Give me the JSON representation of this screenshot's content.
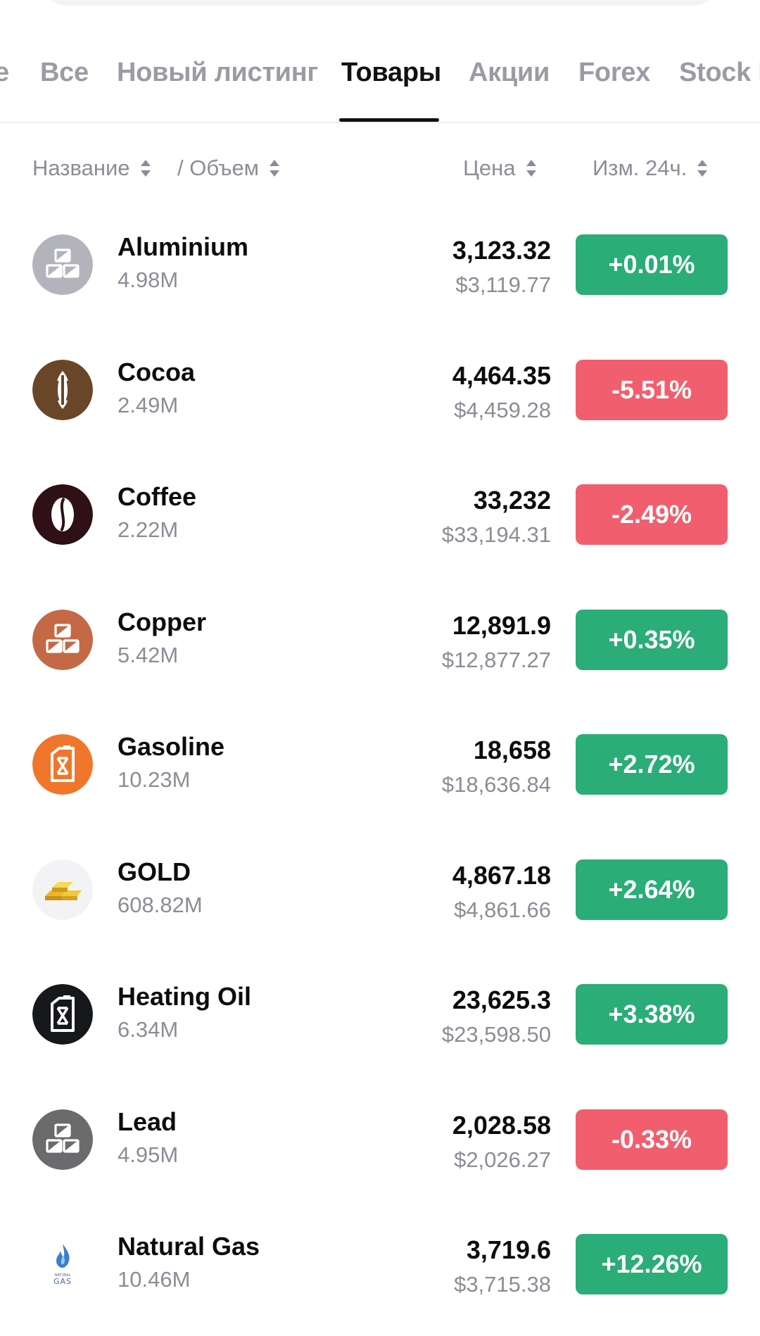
{
  "tabs": [
    {
      "label": "e"
    },
    {
      "label": "Все"
    },
    {
      "label": "Новый листинг"
    },
    {
      "label": "Товары",
      "active": true
    },
    {
      "label": "Акции"
    },
    {
      "label": "Forex"
    },
    {
      "label": "Stock I"
    }
  ],
  "header": {
    "name": "Название",
    "volume": "/ Объем",
    "price": "Цена",
    "change": "Изм. 24ч."
  },
  "colors": {
    "positive": "#2aad76",
    "negative": "#f15f6e"
  },
  "rows": [
    {
      "name": "Aluminium",
      "volume": "4.98M",
      "price": "3,123.32",
      "usd": "$3,119.77",
      "change": "+0.01%",
      "direction": "up",
      "icon": "metal-bars-icon",
      "icon_bg": "#b3b3bc"
    },
    {
      "name": "Cocoa",
      "volume": "2.49M",
      "price": "4,464.35",
      "usd": "$4,459.28",
      "change": "-5.51%",
      "direction": "down",
      "icon": "cocoa-pod-icon",
      "icon_bg": "#6a4628"
    },
    {
      "name": "Coffee",
      "volume": "2.22M",
      "price": "33,232",
      "usd": "$33,194.31",
      "change": "-2.49%",
      "direction": "down",
      "icon": "coffee-bean-icon",
      "icon_bg": "#2e1016"
    },
    {
      "name": "Copper",
      "volume": "5.42M",
      "price": "12,891.9",
      "usd": "$12,877.27",
      "change": "+0.35%",
      "direction": "up",
      "icon": "metal-bars-icon",
      "icon_bg": "#c46945"
    },
    {
      "name": "Gasoline",
      "volume": "10.23M",
      "price": "18,658",
      "usd": "$18,636.84",
      "change": "+2.72%",
      "direction": "up",
      "icon": "fuel-canister-icon",
      "icon_bg": "#f0762c"
    },
    {
      "name": "GOLD",
      "volume": "608.82M",
      "price": "4,867.18",
      "usd": "$4,861.66",
      "change": "+2.64%",
      "direction": "up",
      "icon": "gold-bars-icon",
      "icon_bg": "#f3f3f5"
    },
    {
      "name": "Heating Oil",
      "volume": "6.34M",
      "price": "23,625.3",
      "usd": "$23,598.50",
      "change": "+3.38%",
      "direction": "up",
      "icon": "fuel-canister-icon",
      "icon_bg": "#16181b"
    },
    {
      "name": "Lead",
      "volume": "4.95M",
      "price": "2,028.58",
      "usd": "$2,026.27",
      "change": "-0.33%",
      "direction": "down",
      "icon": "metal-bars-icon",
      "icon_bg": "#6b6b6e"
    },
    {
      "name": "Natural Gas",
      "volume": "10.46M",
      "price": "3,719.6",
      "usd": "$3,715.38",
      "change": "+12.26%",
      "direction": "up",
      "icon": "natural-gas-flame-icon",
      "icon_bg": "#ffffff"
    }
  ]
}
